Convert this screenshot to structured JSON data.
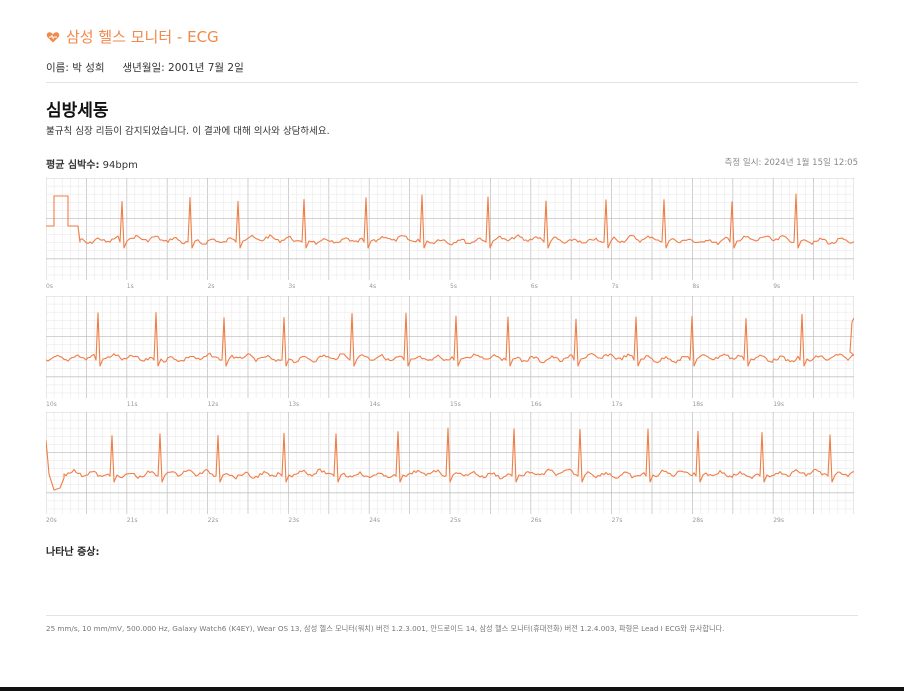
{
  "header": {
    "title": "삼성 헬스 모니터 - ECG",
    "icon": "heart-icon",
    "accent_color": "#f08a4b"
  },
  "patient": {
    "name": "이름: 박 성희",
    "birth": "생년월일: 2001년 7월 2일"
  },
  "diagnosis": {
    "title": "심방세동",
    "description": "불규칙 심장 리듬이 감지되었습니다. 이 결과에 대해 의사와 상담하세요."
  },
  "heart_rate": {
    "label": "평균 심박수:",
    "value": "94bpm"
  },
  "timestamp": "측정 일시: 2024년 1월 15일 12:05",
  "strips": [
    {
      "ticks": [
        "0s",
        "1s",
        "2s",
        "3s",
        "4s",
        "5s",
        "6s",
        "7s",
        "8s",
        "9s"
      ]
    },
    {
      "ticks": [
        "10s",
        "11s",
        "12s",
        "13s",
        "14s",
        "15s",
        "16s",
        "17s",
        "18s",
        "19s"
      ]
    },
    {
      "ticks": [
        "20s",
        "21s",
        "22s",
        "23s",
        "24s",
        "25s",
        "26s",
        "27s",
        "28s",
        "29s"
      ]
    }
  ],
  "symptoms": {
    "label": "나타난 증상:"
  },
  "footer": "25 mm/s, 10 mm/mV, 500.000 Hz, Galaxy Watch6 (K4EY), Wear OS 13, 삼성 헬스 모니터(워치) 버전 1.2.3.001, 안드로이드 14, 삼성 헬스 모니터(휴대전화) 버전 1.2.4.003, 파형은 Lead I ECG와 유사합니다.",
  "colors": {
    "trace": "#f07d45",
    "grid_minor": "#e6e6e6",
    "grid_major": "#c4c4c4"
  }
}
